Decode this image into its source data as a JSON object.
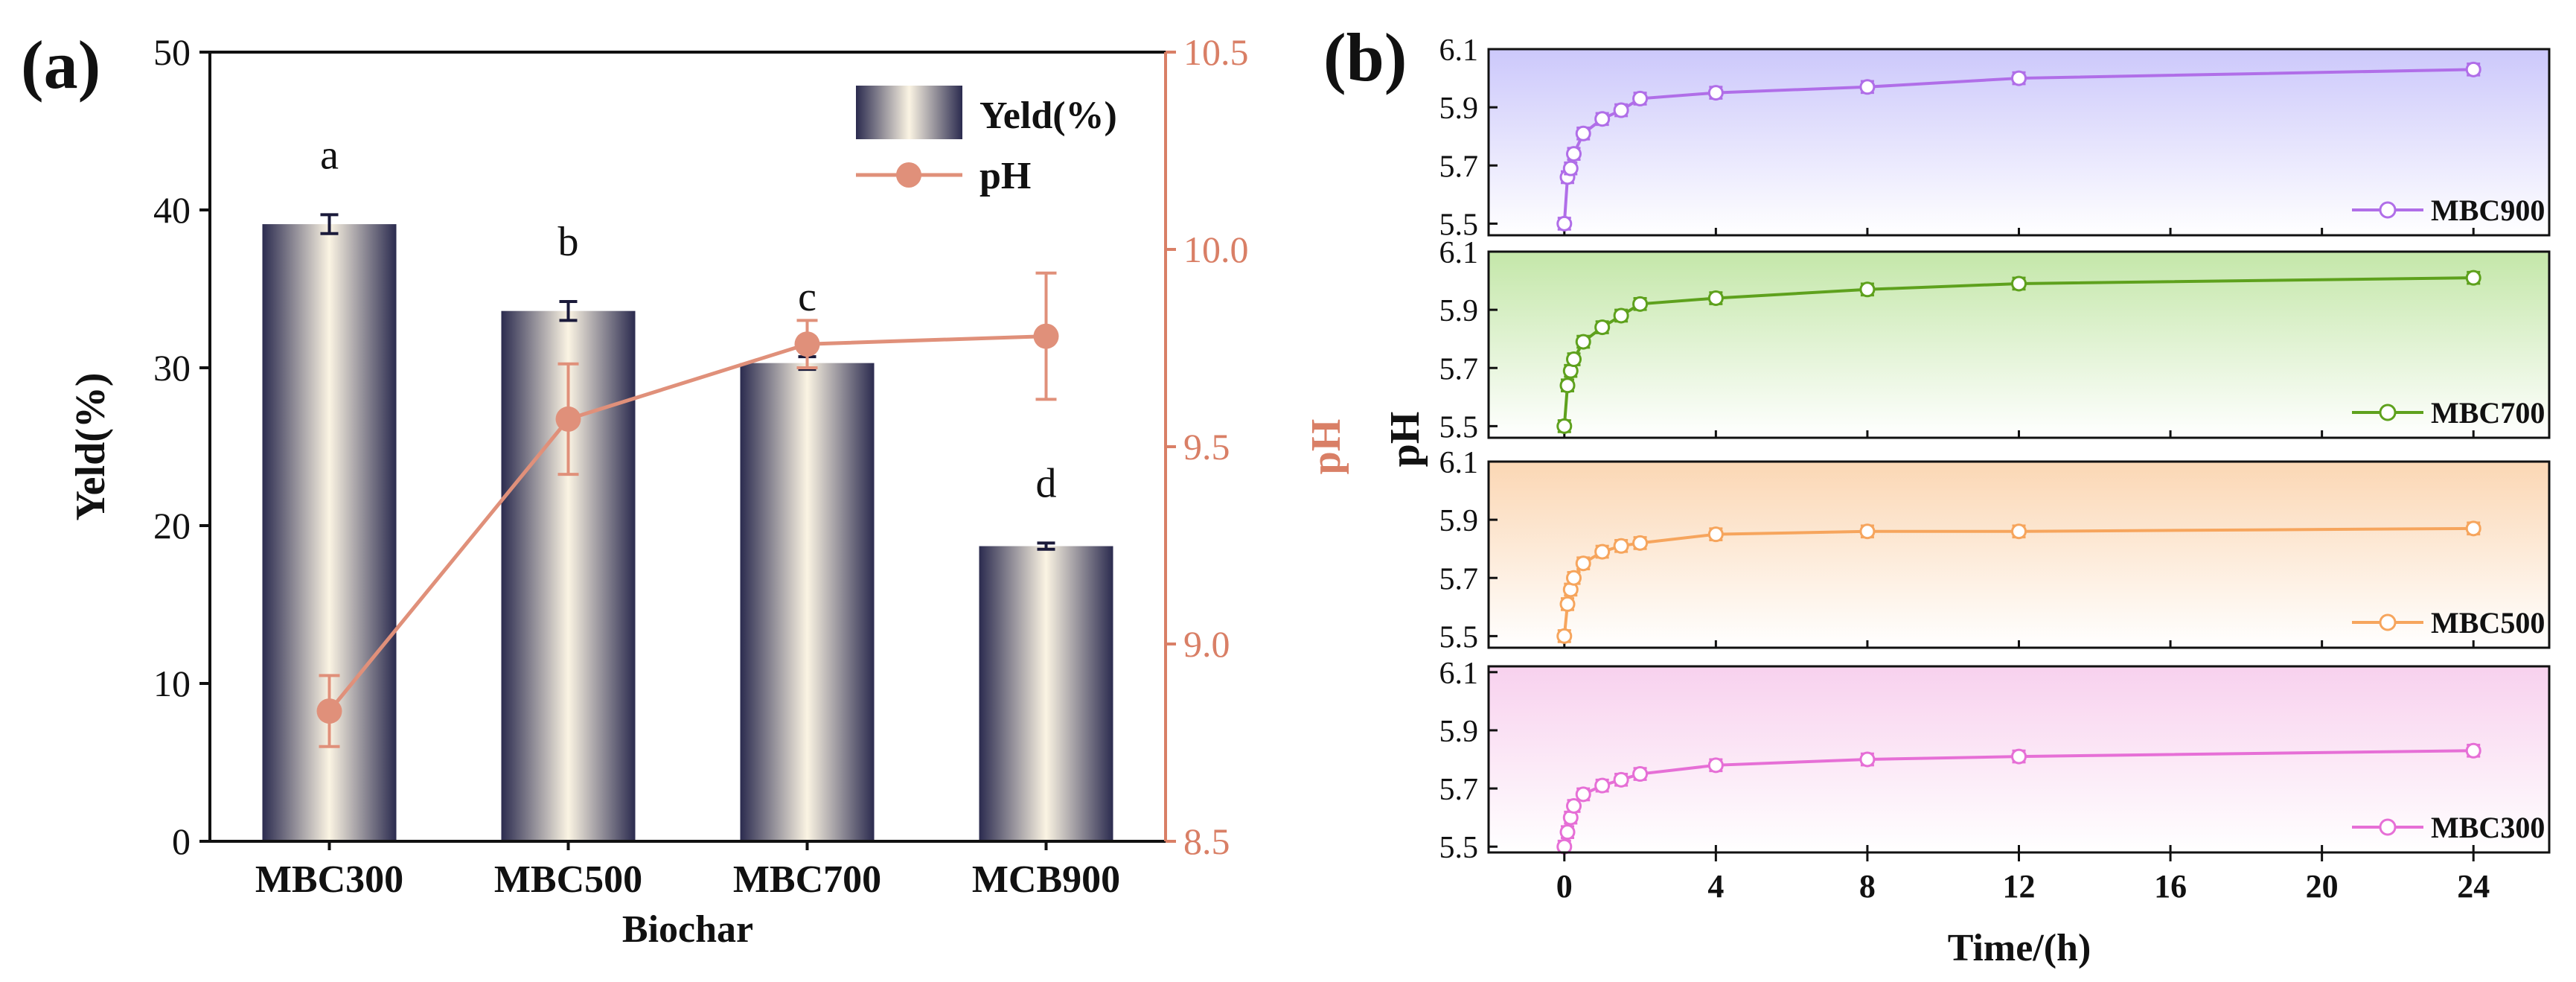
{
  "colors": {
    "bar_dark": "#2b2b4f",
    "bar_light": "#fbf4e3",
    "ph_line": "#e0907a",
    "ph_axis": "#d97f66",
    "axis_text": "#111111",
    "mbc900": "#b06ee8",
    "mbc700": "#5ea11d",
    "mbc500": "#f6a55d",
    "mbc300": "#e66fd6",
    "bg900": "#ccc8fb",
    "bg700": "#c4e7a9",
    "bg500": "#fbd7b4",
    "bg300": "#f8d1ee"
  },
  "chart_data": [
    {
      "type": "bar",
      "panel_label": "(a)",
      "categories": [
        "MBC300",
        "MBC500",
        "MBC700",
        "MCB900"
      ],
      "xlabel": "Biochar",
      "ylabel": "Yeld(%)",
      "y2label": "pH",
      "ylim": [
        0,
        50
      ],
      "y2lim": [
        8.5,
        10.5
      ],
      "yticks": [
        "0",
        "10",
        "20",
        "30",
        "40",
        "50"
      ],
      "y2ticks": [
        "8.5",
        "9.0",
        "9.5",
        "10.0",
        "10.5"
      ],
      "legend": [
        "Yeld(%)",
        "pH"
      ],
      "series": [
        {
          "name": "Yeld(%)",
          "values": [
            39.1,
            33.6,
            30.3,
            18.7
          ],
          "errors": [
            0.6,
            0.6,
            0.4,
            0.2
          ],
          "letters": [
            "a",
            "b",
            "c",
            "d"
          ]
        },
        {
          "name": "pH",
          "axis": "right",
          "values": [
            8.83,
            9.57,
            9.76,
            9.78
          ],
          "errors": [
            0.09,
            0.14,
            0.06,
            0.16
          ]
        }
      ]
    },
    {
      "type": "line",
      "panel_label": "(b)",
      "xlabel": "Time/(h)",
      "ylabel": "pH",
      "xlim": [
        -2,
        26
      ],
      "xticks": [
        "0",
        "4",
        "8",
        "12",
        "16",
        "20",
        "24"
      ],
      "yticks": [
        "5.5",
        "5.7",
        "5.9",
        "6.1"
      ],
      "x": [
        0,
        0.083,
        0.167,
        0.25,
        0.5,
        1,
        1.5,
        2,
        4,
        8,
        12,
        24
      ],
      "series": [
        {
          "name": "MBC900",
          "ylim": [
            5.46,
            6.1
          ],
          "values": [
            5.5,
            5.66,
            5.69,
            5.74,
            5.81,
            5.86,
            5.89,
            5.93,
            5.95,
            5.97,
            6.0,
            6.03
          ]
        },
        {
          "name": "MBC700",
          "ylim": [
            5.46,
            6.1
          ],
          "values": [
            5.5,
            5.64,
            5.69,
            5.73,
            5.79,
            5.84,
            5.88,
            5.92,
            5.94,
            5.97,
            5.99,
            6.01
          ]
        },
        {
          "name": "MBC500",
          "ylim": [
            5.46,
            6.1
          ],
          "values": [
            5.5,
            5.61,
            5.66,
            5.7,
            5.75,
            5.79,
            5.81,
            5.82,
            5.85,
            5.86,
            5.86,
            5.87
          ]
        },
        {
          "name": "MBC300",
          "ylim": [
            5.48,
            6.12
          ],
          "values": [
            5.5,
            5.55,
            5.6,
            5.64,
            5.68,
            5.71,
            5.73,
            5.75,
            5.78,
            5.8,
            5.81,
            5.83
          ]
        }
      ]
    }
  ]
}
